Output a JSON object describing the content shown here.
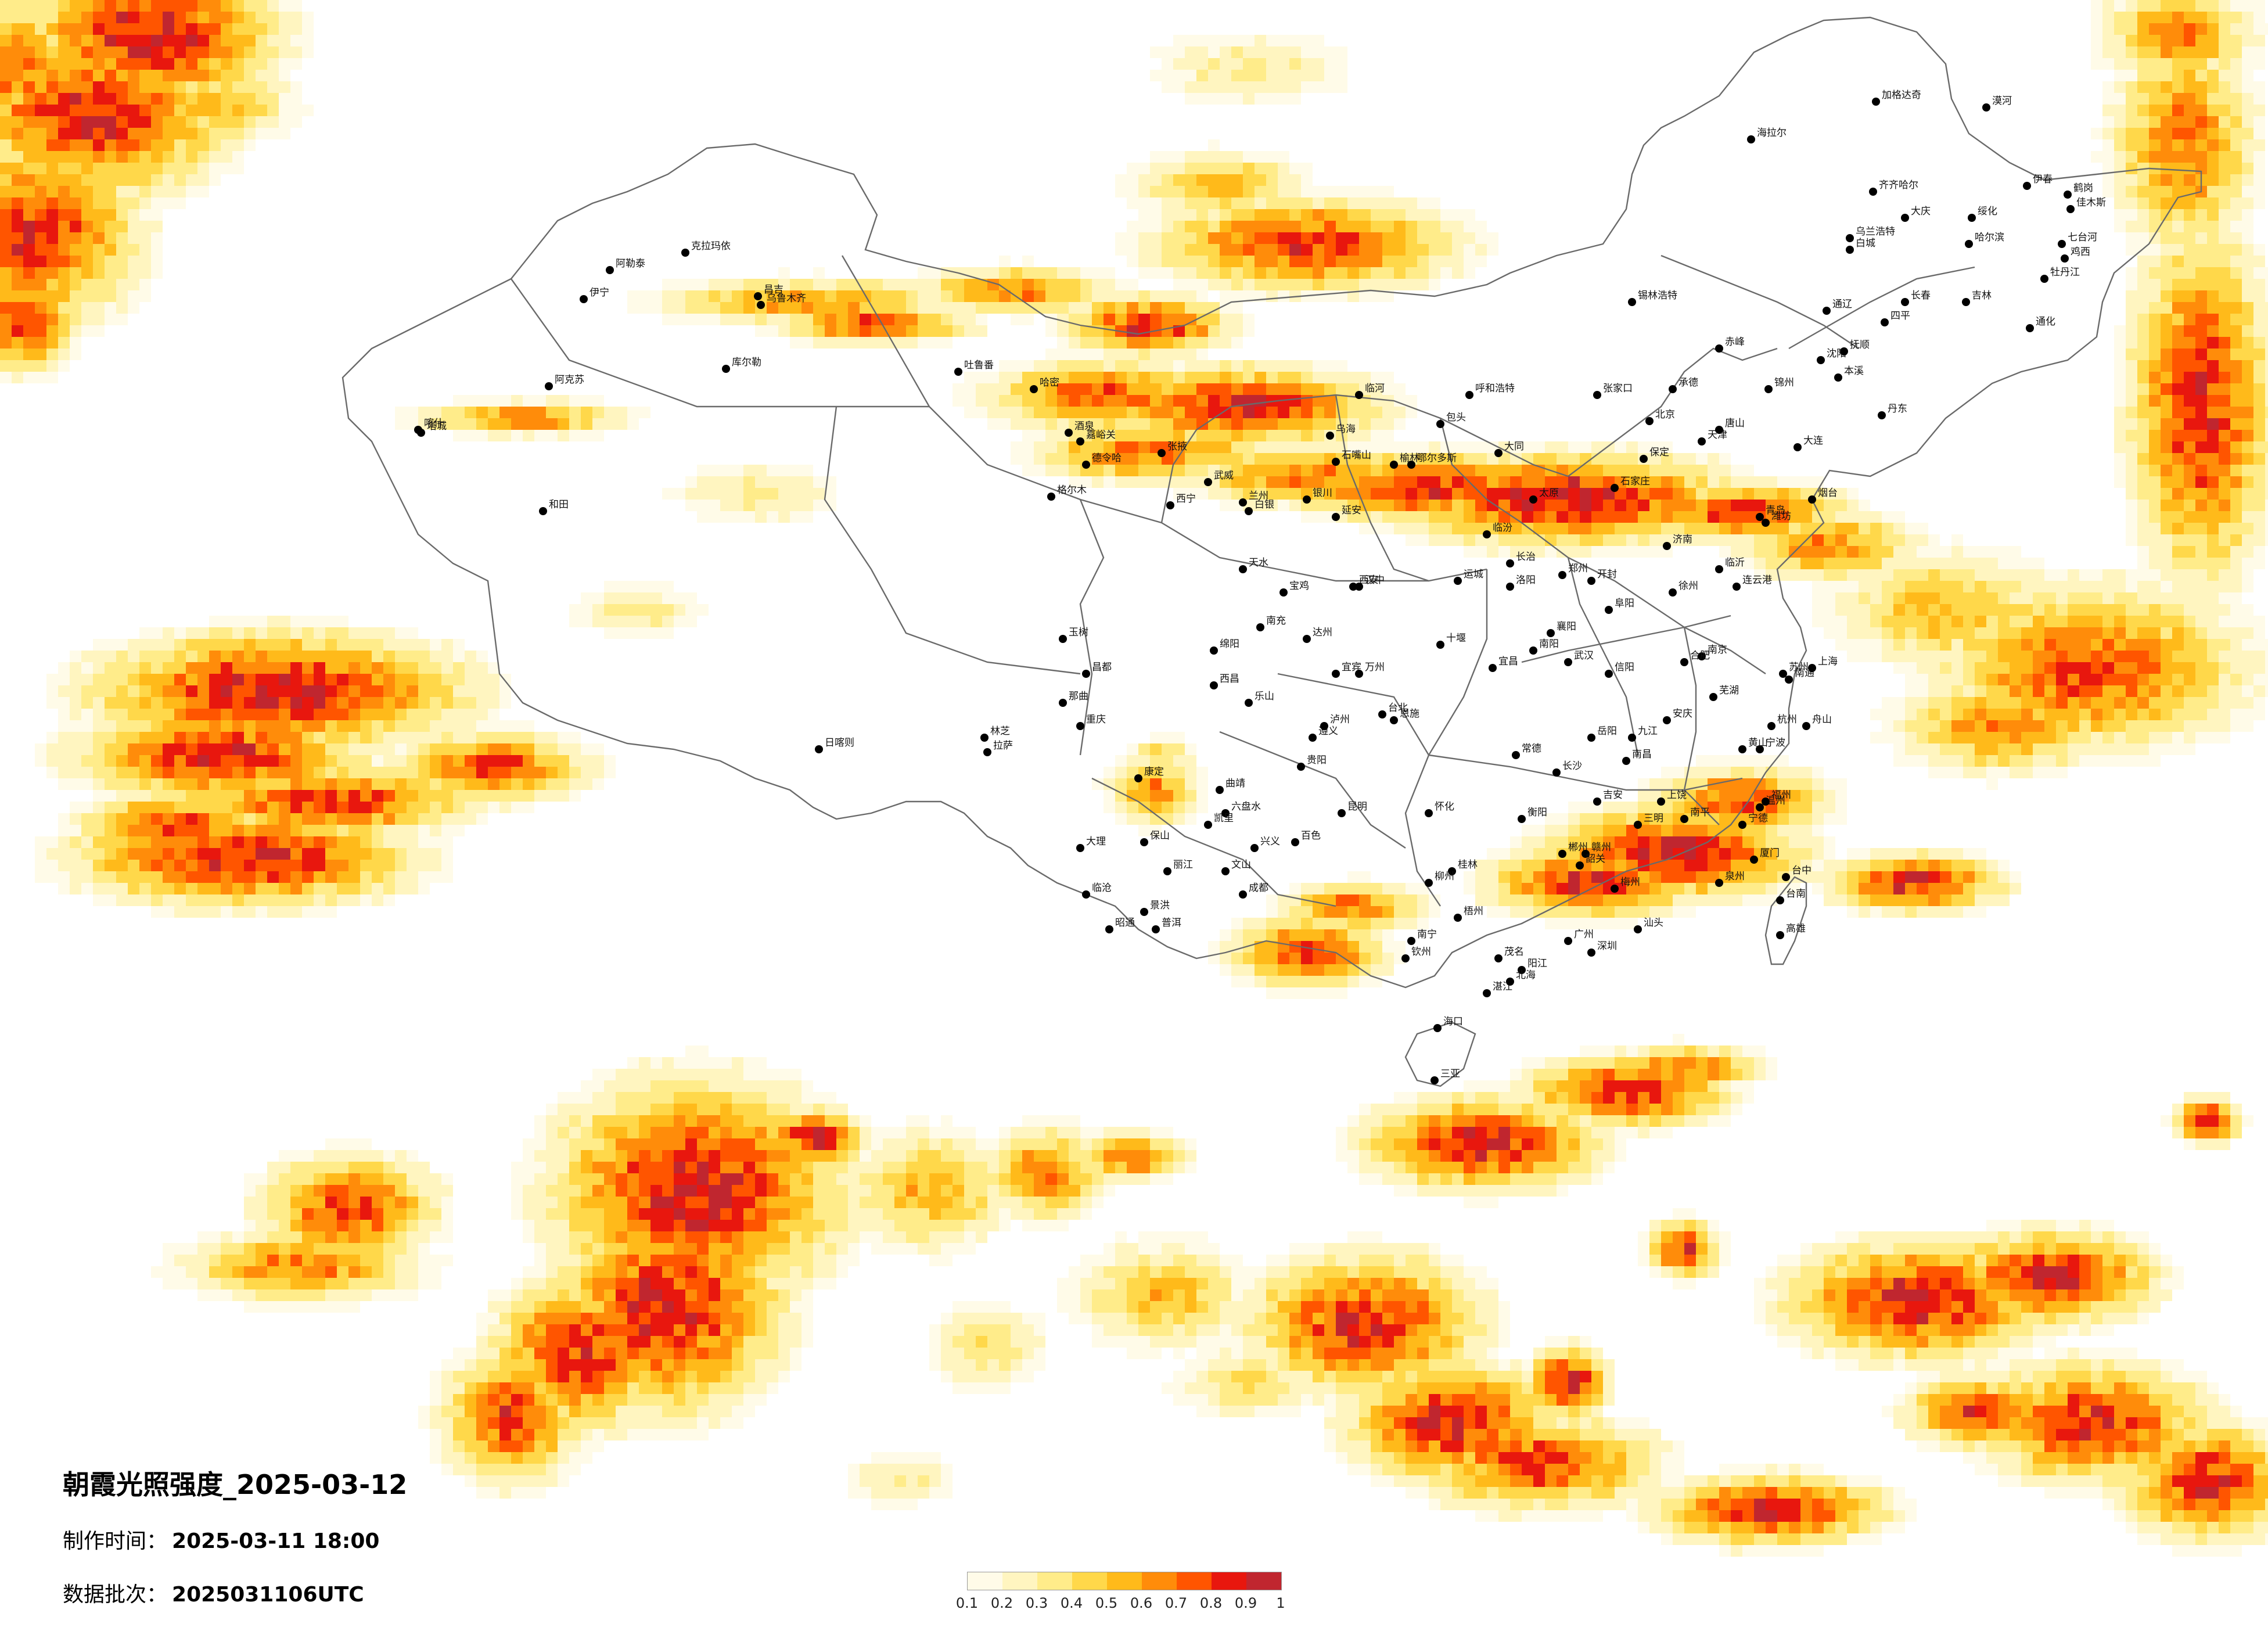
{
  "map": {
    "title": "朝霞光照强度_2025-03-12",
    "made_time_label": "制作时间：",
    "made_time_value": "2025-03-11 18:00",
    "batch_label": "数据批次：",
    "batch_value": "2025031106UTC"
  },
  "legend": {
    "colors": [
      "#fffbe8",
      "#fff5c0",
      "#ffec8a",
      "#ffd84a",
      "#ffba1a",
      "#ff8c0a",
      "#ff5500",
      "#e8170e",
      "#c0262f"
    ],
    "ticks": [
      "0.1",
      "0.2",
      "0.3",
      "0.4",
      "0.5",
      "0.6",
      "0.7",
      "0.8",
      "0.9",
      "1"
    ]
  },
  "cities": [
    {
      "name": "加格达奇"
    },
    {
      "name": "漠河"
    },
    {
      "name": "海拉尔"
    },
    {
      "name": "齐齐哈尔"
    },
    {
      "name": "大庆"
    },
    {
      "name": "伊春"
    },
    {
      "name": "鹤岗"
    },
    {
      "name": "佳木斯"
    },
    {
      "name": "哈尔滨"
    },
    {
      "name": "绥化"
    },
    {
      "name": "七台河"
    },
    {
      "name": "鸡西"
    },
    {
      "name": "牡丹江"
    },
    {
      "name": "长春"
    },
    {
      "name": "吉林"
    },
    {
      "name": "通化"
    },
    {
      "name": "四平"
    },
    {
      "name": "乌兰浩特"
    },
    {
      "name": "白城"
    },
    {
      "name": "通辽"
    },
    {
      "name": "沈阳"
    },
    {
      "name": "抚顺"
    },
    {
      "name": "本溪"
    },
    {
      "name": "丹东"
    },
    {
      "name": "大连"
    },
    {
      "name": "锦州"
    },
    {
      "name": "赤峰"
    },
    {
      "name": "锡林浩特"
    },
    {
      "name": "张家口"
    },
    {
      "name": "承德"
    },
    {
      "name": "北京"
    },
    {
      "name": "天津"
    },
    {
      "name": "唐山"
    },
    {
      "name": "保定"
    },
    {
      "name": "石家庄"
    },
    {
      "name": "呼和浩特"
    },
    {
      "name": "包头"
    },
    {
      "name": "鄂尔多斯"
    },
    {
      "name": "临河"
    },
    {
      "name": "乌海"
    },
    {
      "name": "银川"
    },
    {
      "name": "石嘴山"
    },
    {
      "name": "兰州"
    },
    {
      "name": "西宁"
    },
    {
      "name": "德令哈"
    },
    {
      "name": "格尔木"
    },
    {
      "name": "玉树"
    },
    {
      "name": "拉萨"
    },
    {
      "name": "日喀则"
    },
    {
      "name": "林芝"
    },
    {
      "name": "那曲"
    },
    {
      "name": "昌都"
    },
    {
      "name": "乌鲁木齐"
    },
    {
      "name": "昌吉"
    },
    {
      "name": "克拉玛依"
    },
    {
      "name": "伊宁"
    },
    {
      "name": "库尔勒"
    },
    {
      "name": "阿克苏"
    },
    {
      "name": "喀什"
    },
    {
      "name": "和田"
    },
    {
      "name": "哈密"
    },
    {
      "name": "吐鲁番"
    },
    {
      "name": "阿勒泰"
    },
    {
      "name": "塔城"
    },
    {
      "name": "嘉峪关"
    },
    {
      "name": "酒泉"
    },
    {
      "name": "张掖"
    },
    {
      "name": "武威"
    },
    {
      "name": "白银"
    },
    {
      "name": "天水"
    },
    {
      "name": "西安"
    },
    {
      "name": "宝鸡"
    },
    {
      "name": "延安"
    },
    {
      "name": "榆林"
    },
    {
      "name": "汉中"
    },
    {
      "name": "太原"
    },
    {
      "name": "大同"
    },
    {
      "name": "长治"
    },
    {
      "name": "临汾"
    },
    {
      "name": "运城"
    },
    {
      "name": "郑州"
    },
    {
      "name": "洛阳"
    },
    {
      "name": "开封"
    },
    {
      "name": "南阳"
    },
    {
      "name": "信阳"
    },
    {
      "name": "济南"
    },
    {
      "name": "青岛"
    },
    {
      "name": "烟台"
    },
    {
      "name": "潍坊"
    },
    {
      "name": "临沂"
    },
    {
      "name": "徐州"
    },
    {
      "name": "南京"
    },
    {
      "name": "苏州"
    },
    {
      "name": "连云港"
    },
    {
      "name": "南通"
    },
    {
      "name": "上海"
    },
    {
      "name": "杭州"
    },
    {
      "name": "宁波"
    },
    {
      "name": "温州"
    },
    {
      "name": "舟山"
    },
    {
      "name": "合肥"
    },
    {
      "name": "芜湖"
    },
    {
      "name": "安庆"
    },
    {
      "name": "黄山"
    },
    {
      "name": "阜阳"
    },
    {
      "name": "武汉"
    },
    {
      "name": "宜昌"
    },
    {
      "name": "襄阳"
    },
    {
      "name": "十堰"
    },
    {
      "name": "恩施"
    },
    {
      "name": "长沙"
    },
    {
      "name": "岳阳"
    },
    {
      "name": "常德"
    },
    {
      "name": "衡阳"
    },
    {
      "name": "郴州"
    },
    {
      "name": "怀化"
    },
    {
      "name": "南昌"
    },
    {
      "name": "九江"
    },
    {
      "name": "赣州"
    },
    {
      "name": "吉安"
    },
    {
      "name": "上饶"
    },
    {
      "name": "福州"
    },
    {
      "name": "厦门"
    },
    {
      "name": "泉州"
    },
    {
      "name": "南平"
    },
    {
      "name": "三明"
    },
    {
      "name": "宁德"
    },
    {
      "name": "广州"
    },
    {
      "name": "深圳"
    },
    {
      "name": "韶关"
    },
    {
      "name": "汕头"
    },
    {
      "name": "梅州"
    },
    {
      "name": "湛江"
    },
    {
      "name": "茂名"
    },
    {
      "name": "阳江"
    },
    {
      "name": "南宁"
    },
    {
      "name": "桂林"
    },
    {
      "name": "柳州"
    },
    {
      "name": "梧州"
    },
    {
      "name": "北海"
    },
    {
      "name": "百色"
    },
    {
      "name": "钦州"
    },
    {
      "name": "海口"
    },
    {
      "name": "三亚"
    },
    {
      "name": "贵阳"
    },
    {
      "name": "遵义"
    },
    {
      "name": "六盘水"
    },
    {
      "name": "兴义"
    },
    {
      "name": "凯里"
    },
    {
      "name": "昆明"
    },
    {
      "name": "大理"
    },
    {
      "name": "丽江"
    },
    {
      "name": "保山"
    },
    {
      "name": "临沧"
    },
    {
      "name": "景洪"
    },
    {
      "name": "普洱"
    },
    {
      "name": "昭通"
    },
    {
      "name": "曲靖"
    },
    {
      "name": "文山"
    },
    {
      "name": "成都"
    },
    {
      "name": "绵阳"
    },
    {
      "name": "南充"
    },
    {
      "name": "达州"
    },
    {
      "name": "宜宾"
    },
    {
      "name": "泸州"
    },
    {
      "name": "乐山"
    },
    {
      "name": "西昌"
    },
    {
      "name": "康定"
    },
    {
      "name": "重庆"
    },
    {
      "name": "万州"
    },
    {
      "name": "台北"
    },
    {
      "name": "台中"
    },
    {
      "name": "台南"
    },
    {
      "name": "高雄"
    }
  ]
}
